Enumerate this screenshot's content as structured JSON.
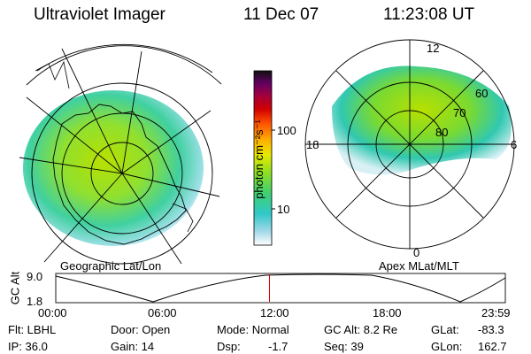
{
  "header": {
    "instrument": "Ultraviolet Imager",
    "date": "11 Dec 07",
    "time": "11:23:08 UT"
  },
  "colorbar": {
    "unit_label": "photon cm⁻²s⁻¹",
    "tick_100": "100",
    "tick_10": "10"
  },
  "geo_map": {
    "caption": "Geographic Lat/Lon"
  },
  "apex_map": {
    "caption": "Apex MLat/MLT",
    "mlt_12": "12",
    "mlt_18": "18",
    "mlt_6": "6",
    "mlt_0": "0",
    "mlat_60": "60",
    "mlat_70": "70",
    "mlat_80": "80"
  },
  "orbit": {
    "ylabel": "GC Alt",
    "ymax": "9.0",
    "ymin": "1.8",
    "t0": "00:00",
    "t1": "06:00",
    "t2": "12:00",
    "t3": "18:00",
    "t4": "23:59",
    "current_fraction": 0.4744
  },
  "status": {
    "flt_label": "Flt: LBHL",
    "ip_label": "IP: 36.0",
    "door_label": "Door: Open",
    "gain_label": "Gain: 14",
    "mode_label": "Mode: Normal",
    "dsp_label": "Dsp:",
    "dsp_value": "-1.7",
    "gcalt_label": "GC Alt: 8.2 Re",
    "seq_label": "Seq: 39",
    "glat_label": "GLat:",
    "glat_value": "-83.3",
    "glon_label": "GLon:",
    "glon_value": "162.7"
  }
}
